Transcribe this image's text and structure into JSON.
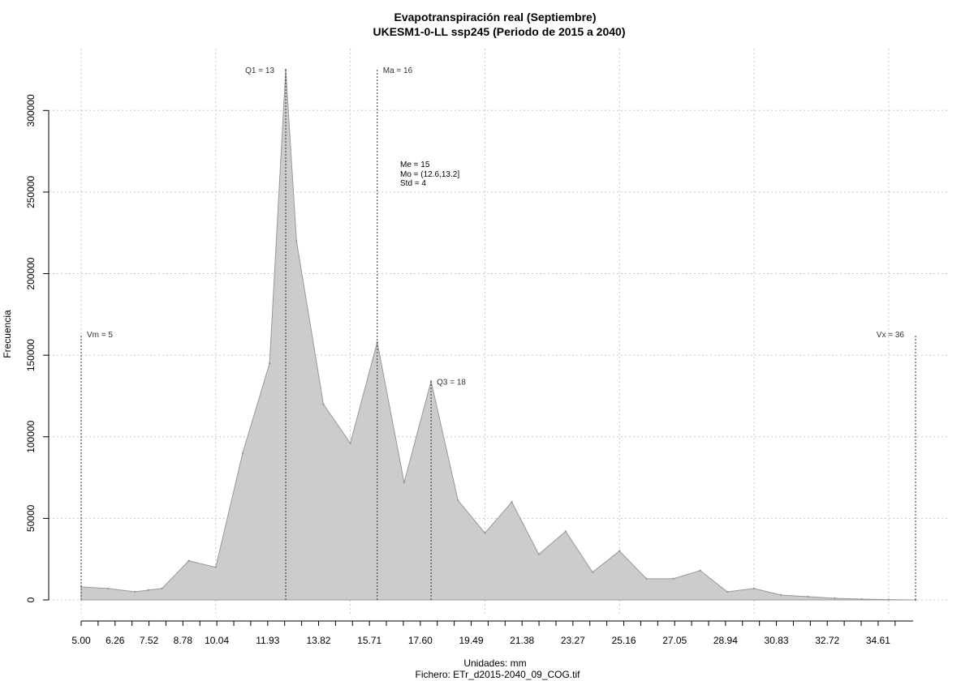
{
  "chart_data": {
    "type": "area",
    "title": "Evapotranspiración real (Septiembre)",
    "subtitle": "UKESM1-0-LL ssp245 (Periodo de 2015 a 2040)",
    "xlabel": "Unidades: mm",
    "ylabel": "Frecuencia",
    "footer": "Fichero: ETr_d2015-2040_09_COG.tif",
    "xlim": [
      5.0,
      36.0
    ],
    "ylim": [
      0,
      325000
    ],
    "x_tick_values": [
      5.0,
      6.26,
      7.52,
      8.78,
      10.04,
      11.93,
      13.82,
      15.71,
      17.6,
      19.49,
      21.38,
      23.27,
      25.16,
      27.05,
      28.94,
      30.83,
      32.72,
      34.61
    ],
    "x_tick_labels": [
      "5.00",
      "6.26",
      "7.52",
      "8.78",
      "10.04",
      "11.93",
      "13.82",
      "15.71",
      "17.60",
      "19.49",
      "21.38",
      "23.27",
      "25.16",
      "27.05",
      "28.94",
      "30.83",
      "32.72",
      "34.61"
    ],
    "y_tick_values": [
      0,
      50000,
      100000,
      150000,
      200000,
      250000,
      300000
    ],
    "y_tick_labels": [
      "0",
      "50000",
      "100000",
      "150000",
      "200000",
      "250000",
      "300000"
    ],
    "grid": true,
    "fill_color": "#cccccc",
    "stroke_color": "#999999",
    "series": [
      {
        "x": [
          5.0,
          6.0,
          7.0,
          7.5,
          8.0,
          9.0,
          10.0,
          11.0,
          12.0,
          12.6,
          13.0,
          14.0,
          15.0,
          16.0,
          17.0,
          18.0,
          19.0,
          20.0,
          21.0,
          22.0,
          23.0,
          24.0,
          25.0,
          26.0,
          27.0,
          28.0,
          29.0,
          30.0,
          31.0,
          32.0,
          33.0,
          34.0,
          35.0,
          36.0
        ],
        "y": [
          8000,
          7000,
          5000,
          6000,
          7000,
          24000,
          20000,
          90000,
          145000,
          325000,
          220000,
          120000,
          96000,
          158000,
          72000,
          134000,
          61000,
          41000,
          60000,
          28000,
          42000,
          17000,
          30000,
          13000,
          13000,
          18000,
          5000,
          7000,
          3000,
          2000,
          1000,
          500,
          200,
          0
        ]
      }
    ],
    "vertical_markers": [
      {
        "label": "Vm = 5",
        "x": 5.0,
        "y_top": 163000,
        "label_side": "right"
      },
      {
        "label": "Q1 = 13",
        "x": 12.6,
        "y_top": 325000,
        "label_side": "left"
      },
      {
        "label": "Ma = 16",
        "x": 16.0,
        "y_top": 325000,
        "label_side": "right"
      },
      {
        "label": "Q3 = 18",
        "x": 18.0,
        "y_top": 134000,
        "label_side": "right"
      },
      {
        "label": "Vx = 36",
        "x": 36.0,
        "y_top": 163000,
        "label_side": "left"
      }
    ],
    "stats_annotation": [
      "Me = 15",
      "Mo = (12.6,13.2]",
      "Std = 4"
    ]
  }
}
